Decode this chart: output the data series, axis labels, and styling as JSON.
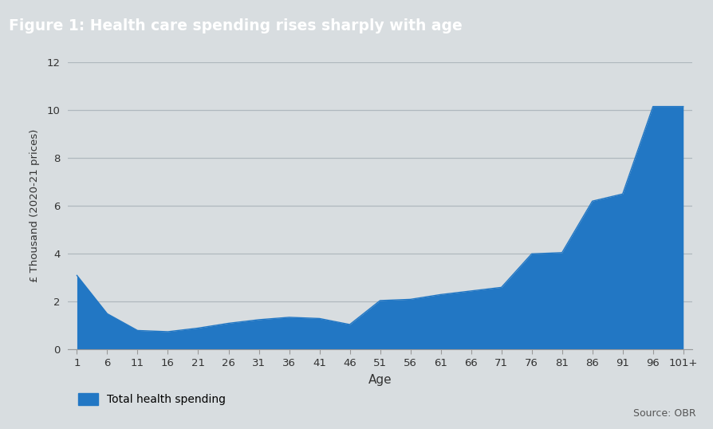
{
  "title": "Figure 1: Health care spending rises sharply with age",
  "title_bg_color": "#4a5e6e",
  "title_text_color": "#ffffff",
  "bg_color": "#d8dde0",
  "plot_bg_color": "#d8dde0",
  "fill_color": "#2277c4",
  "ylabel": "£ Thousand (2020-21 prices)",
  "xlabel": "Age",
  "source_text": "Source: OBR",
  "legend_label": "Total health spending",
  "ylim": [
    0,
    12
  ],
  "yticks": [
    0,
    2,
    4,
    6,
    8,
    10,
    12
  ],
  "x_labels": [
    "1",
    "6",
    "11",
    "16",
    "21",
    "26",
    "31",
    "36",
    "41",
    "46",
    "51",
    "56",
    "61",
    "66",
    "71",
    "76",
    "81",
    "86",
    "91",
    "96",
    "101+"
  ],
  "values": [
    3.1,
    1.5,
    0.8,
    0.75,
    0.9,
    1.1,
    1.25,
    1.35,
    1.3,
    1.05,
    2.05,
    2.1,
    2.3,
    2.45,
    2.6,
    4.0,
    4.05,
    6.2,
    6.5,
    10.15,
    10.15
  ]
}
